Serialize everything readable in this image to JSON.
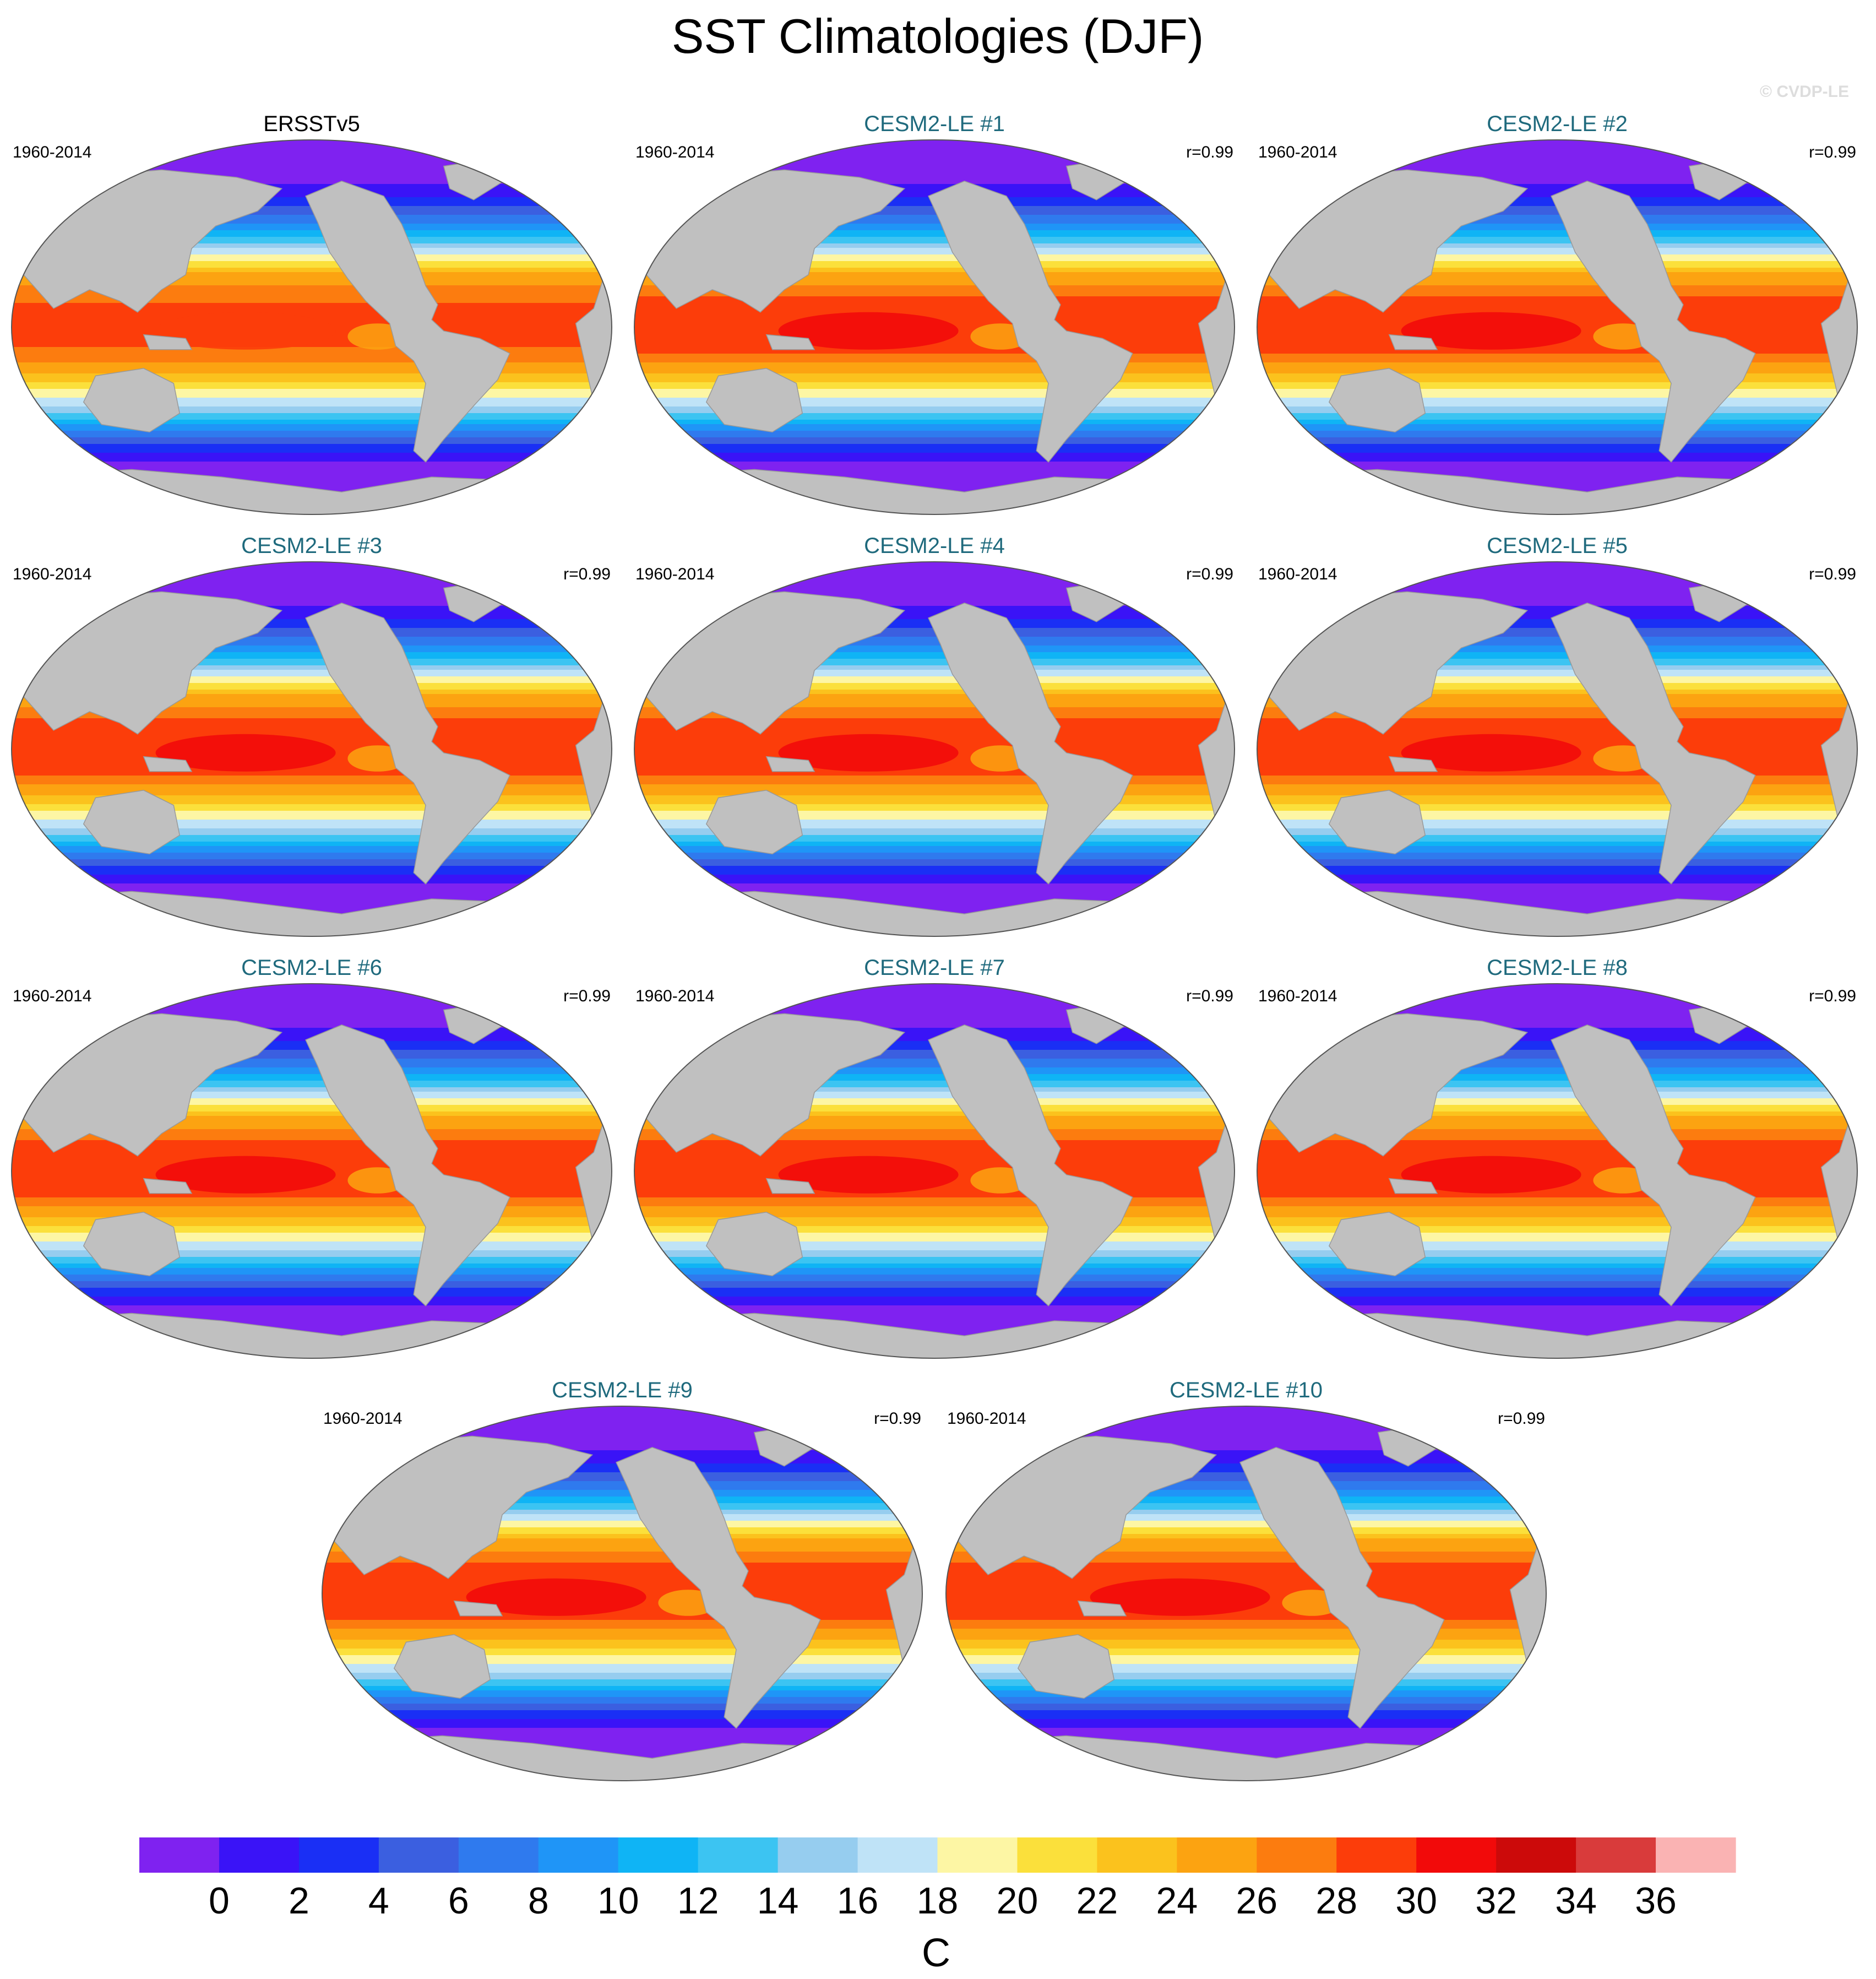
{
  "title": "SST Climatologies (DJF)",
  "watermark": "© CVDP-LE",
  "period": "1960-2014",
  "panels": [
    {
      "title": "ERSSTv5",
      "period": "1960-2014",
      "r": "",
      "observed": true,
      "variant": 0
    },
    {
      "title": "CESM2-LE #1",
      "period": "1960-2014",
      "r": "r=0.99",
      "observed": false,
      "variant": 1
    },
    {
      "title": "CESM2-LE #2",
      "period": "1960-2014",
      "r": "r=0.99",
      "observed": false,
      "variant": 2
    },
    {
      "title": "CESM2-LE #3",
      "period": "1960-2014",
      "r": "r=0.99",
      "observed": false,
      "variant": 3
    },
    {
      "title": "CESM2-LE #4",
      "period": "1960-2014",
      "r": "r=0.99",
      "observed": false,
      "variant": 4
    },
    {
      "title": "CESM2-LE #5",
      "period": "1960-2014",
      "r": "r=0.99",
      "observed": false,
      "variant": 5
    },
    {
      "title": "CESM2-LE #6",
      "period": "1960-2014",
      "r": "r=0.99",
      "observed": false,
      "variant": 6
    },
    {
      "title": "CESM2-LE #7",
      "period": "1960-2014",
      "r": "r=0.99",
      "observed": false,
      "variant": 7
    },
    {
      "title": "CESM2-LE #8",
      "period": "1960-2014",
      "r": "r=0.99",
      "observed": false,
      "variant": 8
    },
    {
      "title": "CESM2-LE #9",
      "period": "1960-2014",
      "r": "r=0.99",
      "observed": false,
      "variant": 9
    },
    {
      "title": "CESM2-LE #10",
      "period": "1960-2014",
      "r": "r=0.99",
      "observed": false,
      "variant": 10
    }
  ],
  "colorbar": {
    "unit": "C",
    "tick_labels": [
      "0",
      "2",
      "4",
      "6",
      "8",
      "10",
      "12",
      "14",
      "16",
      "18",
      "20",
      "22",
      "24",
      "26",
      "28",
      "30",
      "32",
      "34",
      "36"
    ],
    "colors": [
      "#7f22f0",
      "#3a13f7",
      "#1a2ff5",
      "#3b5fe0",
      "#2f7aee",
      "#1f95f7",
      "#0fb4f5",
      "#3cc4f2",
      "#96cdef",
      "#bfe3f7",
      "#fdf6a4",
      "#fbe03b",
      "#fbc21d",
      "#fca311",
      "#fc7c0f",
      "#fc3d0a",
      "#f20a0a",
      "#cc0a0a",
      "#d93b3b",
      "#fab3b3"
    ]
  },
  "style": {
    "model_title_color": "#1f6a7d",
    "obs_title_color": "#000000",
    "land_color": "#c0c0c0",
    "text_color": "#000000",
    "watermark_color": "#dddddd"
  }
}
